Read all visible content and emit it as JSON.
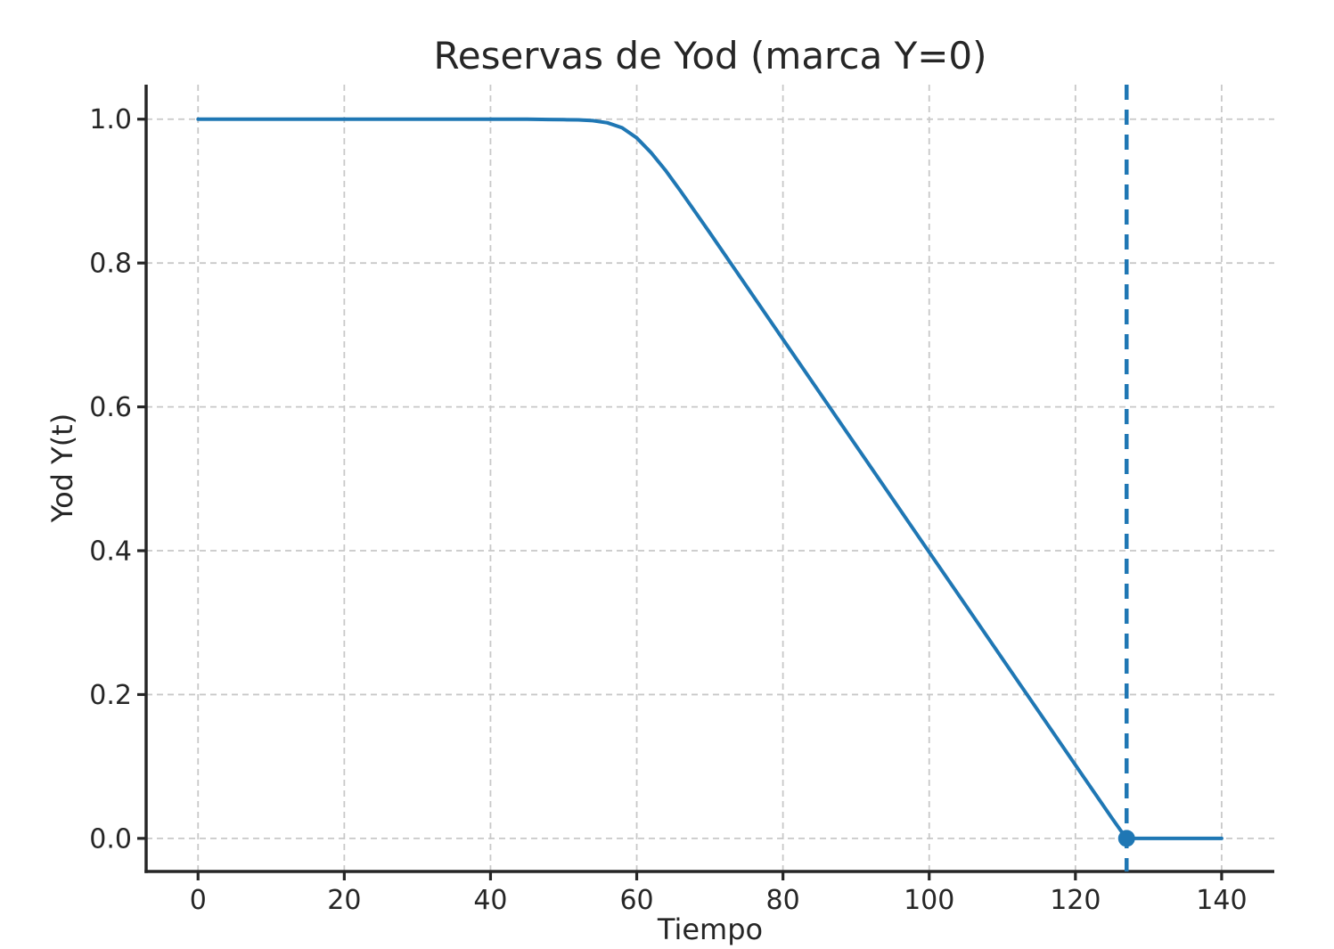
{
  "chart": {
    "title": "Reservas de Yod (marca Y=0)",
    "xlabel": "Tiempo",
    "ylabel": "Yod Y(t)"
  },
  "chart_data": {
    "type": "line",
    "title": "Reservas de Yod (marca Y=0)",
    "xlabel": "Tiempo",
    "ylabel": "Yod Y(t)",
    "xlim": [
      -7.1,
      147.2
    ],
    "ylim": [
      -0.046,
      1.048
    ],
    "x_ticks": [
      0,
      20,
      40,
      60,
      80,
      100,
      120,
      140
    ],
    "x_tick_labels": [
      "0",
      "20",
      "40",
      "60",
      "80",
      "100",
      "120",
      "140"
    ],
    "y_ticks": [
      0,
      0.2,
      0.4,
      0.6,
      0.8,
      1.0
    ],
    "y_tick_labels": [
      "0.0",
      "0.2",
      "0.4",
      "0.6",
      "0.8",
      "1.0"
    ],
    "grid": true,
    "grid_style": "dashed",
    "legend": false,
    "series": [
      {
        "name": "Yod Y(t)",
        "type": "line",
        "color": "#1f77b4",
        "x": [
          0,
          5,
          10,
          15,
          20,
          25,
          30,
          35,
          40,
          45,
          48,
          50,
          52,
          54,
          56,
          58,
          60,
          62,
          64,
          66,
          68,
          70,
          75,
          80,
          85,
          90,
          95,
          100,
          105,
          110,
          115,
          120,
          125,
          126.9,
          127,
          130,
          135,
          140
        ],
        "y": [
          1,
          1,
          1,
          1,
          1,
          1,
          1,
          1,
          1,
          1,
          0.9996,
          0.9993,
          0.999,
          0.998,
          0.995,
          0.988,
          0.974,
          0.953,
          0.928,
          0.9,
          0.871,
          0.842,
          0.768,
          0.694,
          0.62,
          0.546,
          0.472,
          0.398,
          0.324,
          0.25,
          0.176,
          0.102,
          0.028,
          0.001,
          0,
          0,
          0,
          0
        ]
      }
    ],
    "annotations": {
      "vline": {
        "x": 127,
        "style": "dashed",
        "color": "#1f77b4"
      },
      "marker": {
        "x": 127,
        "y": 0,
        "shape": "circle",
        "color": "#1f77b4"
      }
    },
    "colors": {
      "line": "#1f77b4",
      "grid": "#c8c8c8",
      "axis": "#262626",
      "text": "#262626",
      "background": "#ffffff"
    }
  }
}
